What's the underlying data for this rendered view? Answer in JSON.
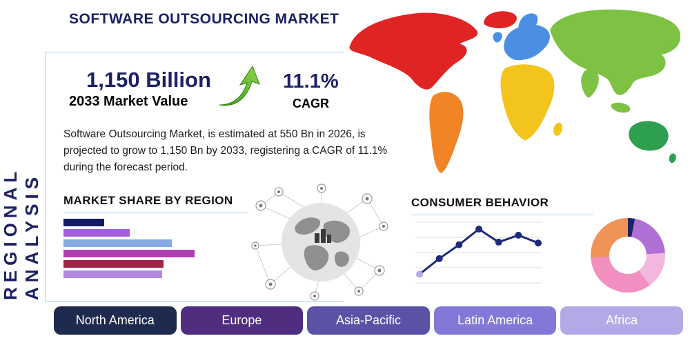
{
  "page": {
    "title": "SOFTWARE OUTSOURCING MARKET",
    "side_label": "REGIONAL ANALYSIS"
  },
  "stats": {
    "market_value": "1,150 Billion",
    "market_value_label": "2033 Market Value",
    "cagr_value": "11.1%",
    "cagr_label": "CAGR"
  },
  "description": "Software Outsourcing Market, is estimated at 550 Bn in 2026, is projected to grow to 1,150 Bn by 2033, registering a CAGR of 11.1% during the forecast period.",
  "sections": {
    "market_share_title": "MARKET SHARE BY REGION",
    "consumer_behavior_title": "CONSUMER BEHAVIOR"
  },
  "regions": [
    {
      "label": "North America",
      "color": "#1f2b4e"
    },
    {
      "label": "Europe",
      "color": "#4f2d7f"
    },
    {
      "label": "Asia-Pacific",
      "color": "#5b52a5"
    },
    {
      "label": "Latin America",
      "color": "#8278d8"
    },
    {
      "label": "Africa",
      "color": "#b4a9e6"
    }
  ],
  "chart_data": [
    {
      "type": "bar",
      "orientation": "horizontal",
      "title": "MARKET SHARE BY REGION",
      "categories": [
        "",
        "",
        "",
        "",
        "",
        ""
      ],
      "values": [
        30,
        49,
        80,
        97,
        74,
        73
      ],
      "colors": [
        "#141b66",
        "#a45fd8",
        "#85a9e0",
        "#b13db3",
        "#a02348",
        "#b18ae0"
      ],
      "xlim": [
        0,
        100
      ],
      "grid": false
    },
    {
      "type": "line",
      "title": "CONSUMER BEHAVIOR",
      "x": [
        1,
        2,
        3,
        4,
        5,
        6,
        7
      ],
      "values": [
        1.0,
        2.8,
        4.4,
        6.2,
        4.7,
        5.5,
        4.6
      ],
      "ylim": [
        0,
        7
      ],
      "line_color": "#1e2a78",
      "first_point_color": "#b9a7e6",
      "grid": true,
      "legend": "none"
    },
    {
      "type": "pie",
      "donut": true,
      "title": "Regional share donut",
      "slices": [
        {
          "label": "segment-navy",
          "value": 3,
          "color": "#1e2366"
        },
        {
          "label": "segment-violet",
          "value": 21,
          "color": "#b06fd4"
        },
        {
          "label": "segment-light-pink",
          "value": 16,
          "color": "#f2b7dc"
        },
        {
          "label": "segment-pink",
          "value": 34,
          "color": "#f08fc0"
        },
        {
          "label": "segment-orange",
          "value": 26,
          "color": "#ef9357"
        }
      ]
    }
  ],
  "world_map": {
    "north_america": "#e02424",
    "greenland": "#e02424",
    "south_america": "#f08426",
    "europe": "#4b8fe2",
    "africa": "#f2c41c",
    "asia": "#7dc242",
    "australia": "#2e9e4f"
  },
  "accent": {
    "border": "#a8d4e8",
    "navy": "#1c2166",
    "arrow_green_dark": "#3f9a1e",
    "arrow_green_light": "#8ed44a"
  }
}
